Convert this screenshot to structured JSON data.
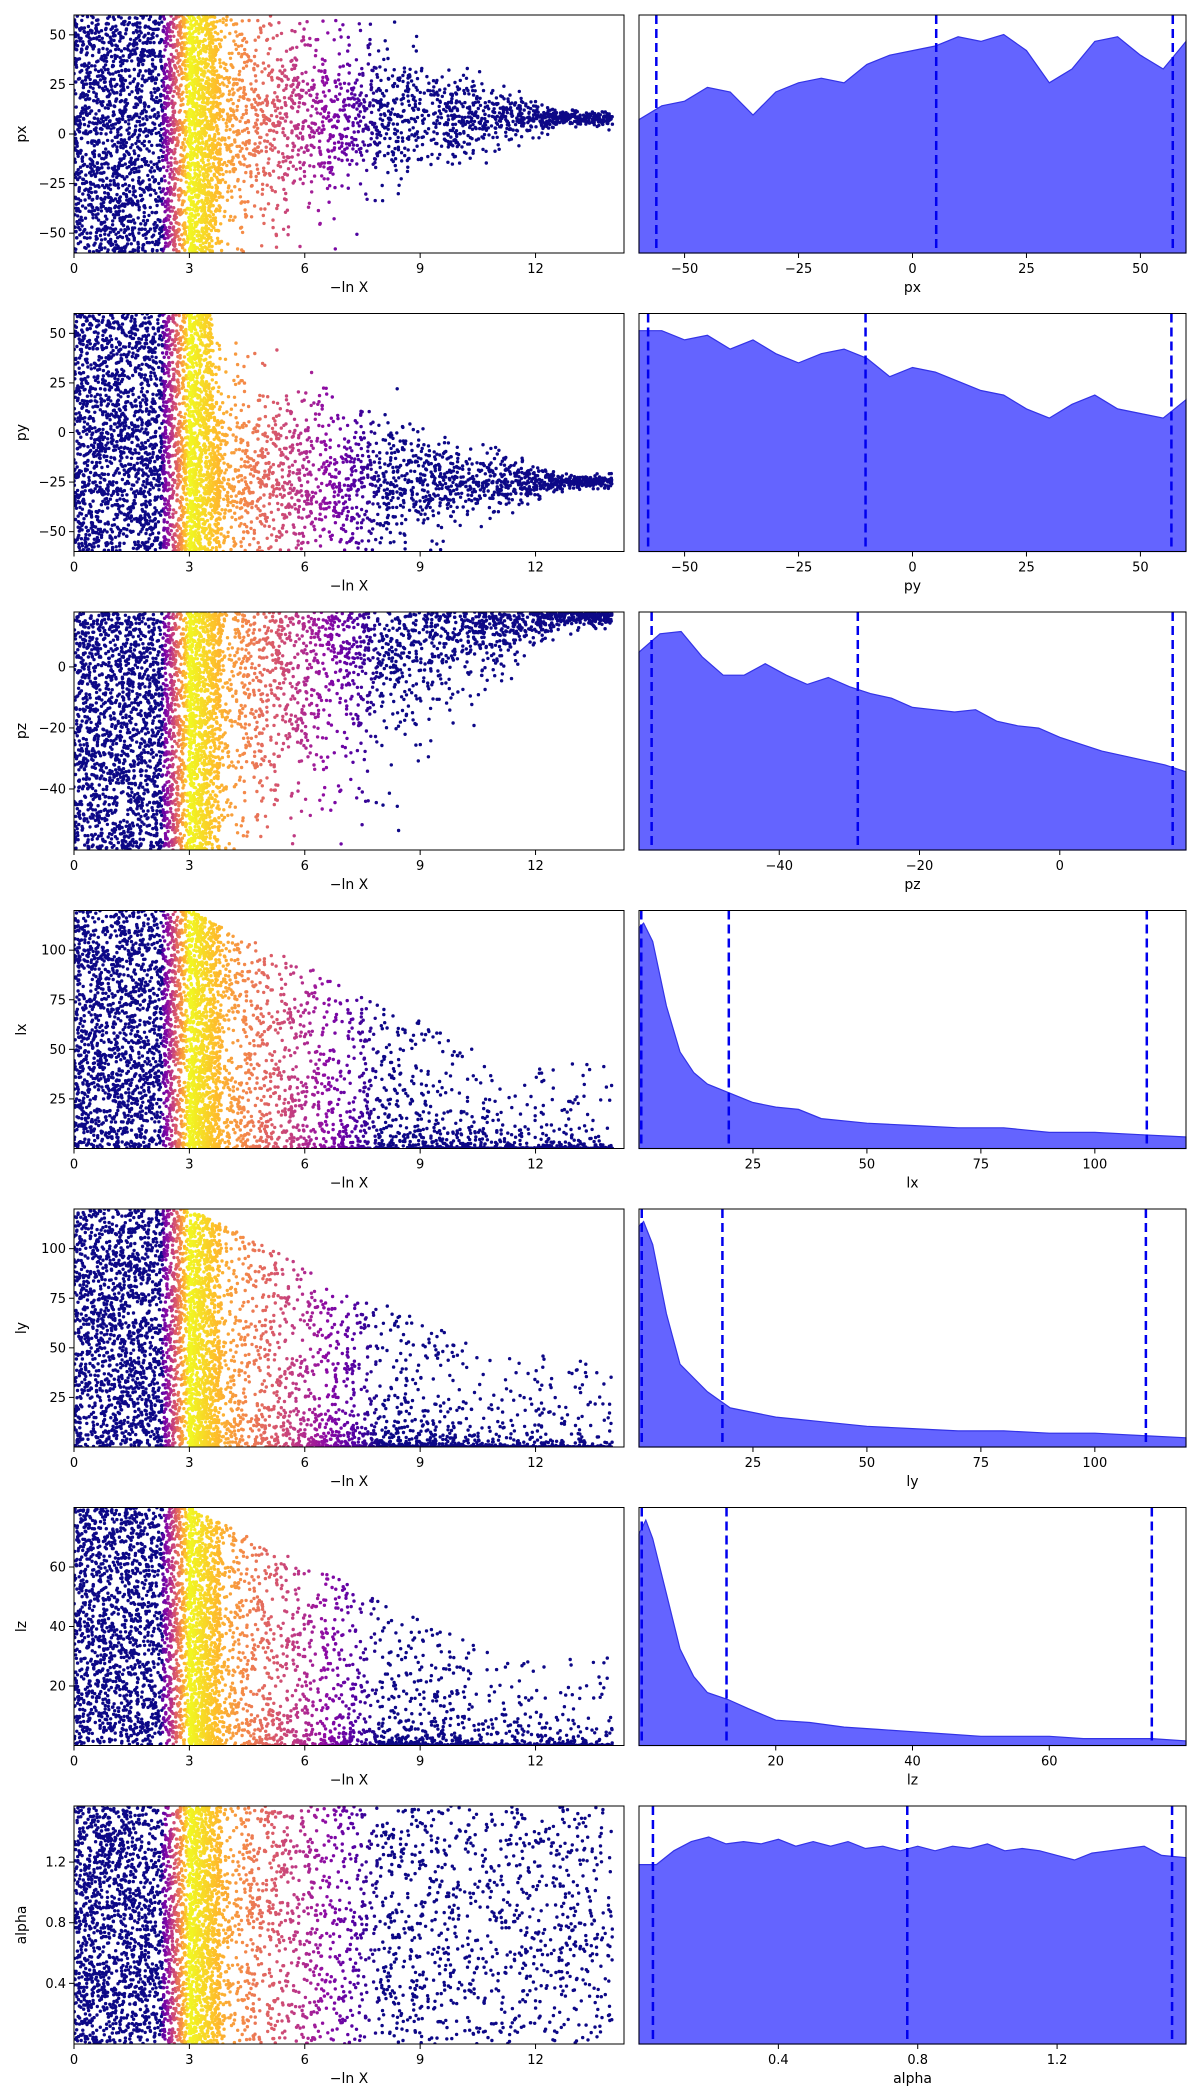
{
  "figure": {
    "background": "#ffffff"
  },
  "colors": {
    "density_fill": "#5c5cff",
    "density_line": "#3333e6",
    "quantile_line": "#0000ee",
    "colormap": "plasma"
  },
  "chart_data": [
    {
      "type": "scatter",
      "row": 0,
      "panel": "trace",
      "xlabel": "−ln X",
      "ylabel": "px",
      "xlim": [
        0,
        14.3
      ],
      "ylim": [
        -60,
        60
      ],
      "xticks": [
        0,
        3,
        6,
        9,
        12
      ],
      "yticks": [
        -50,
        -25,
        0,
        25,
        50
      ],
      "shape": "funnel",
      "center": 8,
      "spread": 70
    },
    {
      "type": "area",
      "row": 0,
      "panel": "density",
      "xlabel": "px",
      "xlim": [
        -60,
        60
      ],
      "ylim": [
        0,
        1
      ],
      "xticks": [
        -50,
        -25,
        0,
        25,
        50
      ],
      "x": [
        -60,
        -55,
        -50,
        -45,
        -40,
        -35,
        -30,
        -25,
        -20,
        -15,
        -10,
        -5,
        0,
        5,
        10,
        15,
        20,
        25,
        30,
        35,
        40,
        45,
        50,
        55,
        60
      ],
      "density": [
        0.58,
        0.64,
        0.66,
        0.72,
        0.7,
        0.6,
        0.7,
        0.74,
        0.76,
        0.74,
        0.82,
        0.86,
        0.88,
        0.9,
        0.94,
        0.92,
        0.95,
        0.88,
        0.74,
        0.8,
        0.92,
        0.94,
        0.86,
        0.8,
        0.92
      ],
      "quantiles": [
        -56.2,
        5.2,
        57.1
      ]
    },
    {
      "type": "scatter",
      "row": 1,
      "panel": "trace",
      "xlabel": "−ln X",
      "ylabel": "py",
      "xlim": [
        0,
        14.3
      ],
      "ylim": [
        -60,
        60
      ],
      "xticks": [
        0,
        3,
        6,
        9,
        12
      ],
      "yticks": [
        -50,
        -25,
        0,
        25,
        50
      ],
      "shape": "funnel",
      "center": -25,
      "spread": 70
    },
    {
      "type": "area",
      "row": 1,
      "panel": "density",
      "xlabel": "py",
      "xlim": [
        -60,
        60
      ],
      "ylim": [
        0,
        1
      ],
      "xticks": [
        -50,
        -25,
        0,
        25,
        50
      ],
      "x": [
        -60,
        -55,
        -50,
        -45,
        -40,
        -35,
        -30,
        -25,
        -20,
        -15,
        -10,
        -5,
        0,
        5,
        10,
        15,
        20,
        25,
        30,
        35,
        40,
        45,
        50,
        55,
        60
      ],
      "density": [
        0.96,
        0.96,
        0.92,
        0.94,
        0.88,
        0.92,
        0.86,
        0.82,
        0.86,
        0.88,
        0.84,
        0.76,
        0.8,
        0.78,
        0.74,
        0.7,
        0.68,
        0.62,
        0.58,
        0.64,
        0.68,
        0.62,
        0.6,
        0.58,
        0.66
      ],
      "quantiles": [
        -58.0,
        -10.3,
        56.8
      ]
    },
    {
      "type": "scatter",
      "row": 2,
      "panel": "trace",
      "xlabel": "−ln X",
      "ylabel": "pz",
      "xlim": [
        0,
        14.3
      ],
      "ylim": [
        -60,
        18
      ],
      "xticks": [
        0,
        3,
        6,
        9,
        12
      ],
      "yticks": [
        -40,
        -20,
        0
      ],
      "shape": "wedge",
      "center": 17,
      "spread": 78
    },
    {
      "type": "area",
      "row": 2,
      "panel": "density",
      "xlabel": "pz",
      "xlim": [
        -60,
        18
      ],
      "ylim": [
        0,
        1
      ],
      "xticks": [
        -40,
        -20,
        0
      ],
      "x": [
        -60,
        -57,
        -54,
        -51,
        -48,
        -45,
        -42,
        -39,
        -36,
        -33,
        -30,
        -27,
        -24,
        -21,
        -18,
        -15,
        -12,
        -9,
        -6,
        -3,
        0,
        3,
        6,
        9,
        12,
        15,
        18
      ],
      "density": [
        0.86,
        0.94,
        0.95,
        0.84,
        0.76,
        0.76,
        0.81,
        0.76,
        0.72,
        0.75,
        0.71,
        0.68,
        0.66,
        0.62,
        0.61,
        0.6,
        0.61,
        0.56,
        0.54,
        0.53,
        0.49,
        0.46,
        0.43,
        0.41,
        0.39,
        0.37,
        0.34
      ],
      "quantiles": [
        -58.2,
        -28.8,
        16.1
      ]
    },
    {
      "type": "scatter",
      "row": 3,
      "panel": "trace",
      "xlabel": "−ln X",
      "ylabel": "lx",
      "xlim": [
        0,
        14.3
      ],
      "ylim": [
        0,
        120
      ],
      "xticks": [
        0,
        3,
        6,
        9,
        12
      ],
      "yticks": [
        25,
        50,
        75,
        100
      ],
      "shape": "decay",
      "center": 0,
      "spread": 120
    },
    {
      "type": "area",
      "row": 3,
      "panel": "density",
      "xlabel": "lx",
      "xlim": [
        0,
        120
      ],
      "ylim": [
        0,
        1
      ],
      "xticks": [
        25,
        50,
        75,
        100
      ],
      "x": [
        0,
        1,
        3,
        6,
        9,
        12,
        15,
        20,
        25,
        30,
        35,
        40,
        50,
        60,
        70,
        80,
        90,
        100,
        110,
        120
      ],
      "density": [
        0.96,
        0.98,
        0.9,
        0.62,
        0.42,
        0.33,
        0.28,
        0.24,
        0.2,
        0.18,
        0.17,
        0.13,
        0.11,
        0.1,
        0.09,
        0.09,
        0.07,
        0.07,
        0.06,
        0.05
      ],
      "quantiles": [
        0.5,
        19.7,
        111.4
      ]
    },
    {
      "type": "scatter",
      "row": 4,
      "panel": "trace",
      "xlabel": "−ln X",
      "ylabel": "ly",
      "xlim": [
        0,
        14.3
      ],
      "ylim": [
        0,
        120
      ],
      "xticks": [
        0,
        3,
        6,
        9,
        12
      ],
      "yticks": [
        25,
        50,
        75,
        100
      ],
      "shape": "decay",
      "center": 0,
      "spread": 120
    },
    {
      "type": "area",
      "row": 4,
      "panel": "density",
      "xlabel": "ly",
      "xlim": [
        0,
        120
      ],
      "ylim": [
        0,
        1
      ],
      "xticks": [
        25,
        50,
        75,
        100
      ],
      "x": [
        0,
        1,
        3,
        6,
        9,
        12,
        15,
        20,
        25,
        30,
        35,
        40,
        50,
        60,
        70,
        80,
        90,
        100,
        110,
        120
      ],
      "density": [
        0.96,
        0.98,
        0.88,
        0.58,
        0.36,
        0.3,
        0.24,
        0.17,
        0.15,
        0.13,
        0.12,
        0.11,
        0.09,
        0.08,
        0.07,
        0.07,
        0.06,
        0.06,
        0.05,
        0.04
      ],
      "quantiles": [
        0.6,
        18.3,
        111.2
      ]
    },
    {
      "type": "scatter",
      "row": 5,
      "panel": "trace",
      "xlabel": "−ln X",
      "ylabel": "lz",
      "xlim": [
        0,
        14.3
      ],
      "ylim": [
        0,
        80
      ],
      "xticks": [
        0,
        3,
        6,
        9,
        12
      ],
      "yticks": [
        20,
        40,
        60
      ],
      "shape": "decay",
      "center": 0,
      "spread": 80
    },
    {
      "type": "area",
      "row": 5,
      "panel": "density",
      "xlabel": "lz",
      "xlim": [
        0,
        80
      ],
      "ylim": [
        0,
        1
      ],
      "xticks": [
        20,
        40,
        60
      ],
      "x": [
        0,
        1,
        2,
        4,
        6,
        8,
        10,
        13,
        16,
        20,
        25,
        30,
        35,
        40,
        45,
        50,
        55,
        60,
        65,
        70,
        75,
        80
      ],
      "density": [
        0.92,
        0.98,
        0.9,
        0.66,
        0.42,
        0.3,
        0.23,
        0.2,
        0.16,
        0.11,
        0.1,
        0.08,
        0.07,
        0.06,
        0.05,
        0.04,
        0.04,
        0.04,
        0.03,
        0.03,
        0.03,
        0.02
      ],
      "quantiles": [
        0.4,
        12.8,
        75.0
      ]
    },
    {
      "type": "scatter",
      "row": 6,
      "panel": "trace",
      "xlabel": "−ln X",
      "ylabel": "alpha",
      "xlim": [
        0,
        14.3
      ],
      "ylim": [
        0,
        1.57
      ],
      "xticks": [
        0,
        3,
        6,
        9,
        12
      ],
      "yticks": [
        0.4,
        0.8,
        1.2
      ],
      "shape": "uniform",
      "center": 0.78,
      "spread": 1.57
    },
    {
      "type": "area",
      "row": 6,
      "panel": "density",
      "xlabel": "alpha",
      "xlim": [
        0,
        1.57
      ],
      "ylim": [
        0,
        1
      ],
      "xticks": [
        0.4,
        0.8,
        1.2
      ],
      "x": [
        0,
        0.05,
        0.1,
        0.15,
        0.2,
        0.25,
        0.3,
        0.35,
        0.4,
        0.45,
        0.5,
        0.55,
        0.6,
        0.65,
        0.7,
        0.75,
        0.8,
        0.85,
        0.9,
        0.95,
        1.0,
        1.05,
        1.1,
        1.15,
        1.2,
        1.25,
        1.3,
        1.35,
        1.4,
        1.45,
        1.5,
        1.57
      ],
      "density": [
        0.78,
        0.78,
        0.84,
        0.88,
        0.9,
        0.87,
        0.88,
        0.87,
        0.89,
        0.86,
        0.88,
        0.86,
        0.88,
        0.85,
        0.86,
        0.84,
        0.86,
        0.84,
        0.86,
        0.85,
        0.87,
        0.84,
        0.85,
        0.84,
        0.82,
        0.8,
        0.83,
        0.84,
        0.85,
        0.86,
        0.82,
        0.81
      ],
      "quantiles": [
        0.04,
        0.77,
        1.53
      ]
    }
  ]
}
